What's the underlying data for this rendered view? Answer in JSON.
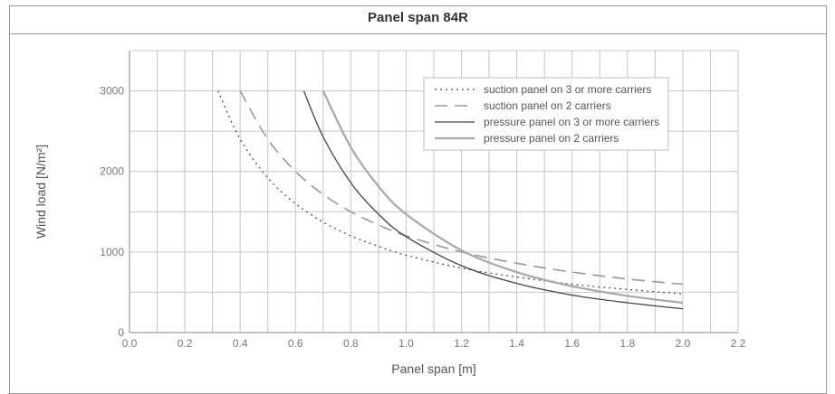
{
  "chart_data": {
    "type": "line",
    "title": "Panel span 84R",
    "xlabel": "Panel span [m]",
    "ylabel": "Wind load [N/m²]",
    "xlim": [
      0.0,
      2.2
    ],
    "ylim": [
      0,
      3500
    ],
    "x_ticks": [
      "0.0",
      "0.2",
      "0.4",
      "0.6",
      "0.8",
      "1.0",
      "1.2",
      "1.4",
      "1.6",
      "1.8",
      "2.0",
      "2.2"
    ],
    "y_ticks": [
      "0",
      "1000",
      "2000",
      "3000"
    ],
    "grid": true,
    "legend_position": "top-right",
    "series": [
      {
        "name": "suction panel on 3 or more carriers",
        "style": "dotted",
        "color": "#444444",
        "points": [
          [
            0.32,
            3000
          ],
          [
            0.4,
            2400
          ],
          [
            0.5,
            1920
          ],
          [
            0.6,
            1600
          ],
          [
            0.7,
            1370
          ],
          [
            0.8,
            1200
          ],
          [
            0.9,
            1070
          ],
          [
            1.0,
            960
          ],
          [
            1.2,
            800
          ],
          [
            1.4,
            690
          ],
          [
            1.6,
            600
          ],
          [
            1.8,
            535
          ],
          [
            2.0,
            480
          ]
        ]
      },
      {
        "name": "suction panel on 2 carriers",
        "style": "dashed",
        "color": "#999999",
        "points": [
          [
            0.4,
            3000
          ],
          [
            0.5,
            2400
          ],
          [
            0.6,
            2000
          ],
          [
            0.7,
            1715
          ],
          [
            0.8,
            1500
          ],
          [
            0.9,
            1335
          ],
          [
            1.0,
            1200
          ],
          [
            1.2,
            1000
          ],
          [
            1.4,
            860
          ],
          [
            1.6,
            750
          ],
          [
            1.8,
            665
          ],
          [
            2.0,
            600
          ]
        ]
      },
      {
        "name": "pressure panel on 3 or more carriers",
        "style": "solid",
        "color": "#444444",
        "points": [
          [
            0.63,
            3000
          ],
          [
            0.7,
            2430
          ],
          [
            0.8,
            1860
          ],
          [
            0.9,
            1470
          ],
          [
            1.0,
            1190
          ],
          [
            1.2,
            830
          ],
          [
            1.4,
            610
          ],
          [
            1.6,
            465
          ],
          [
            1.8,
            370
          ],
          [
            2.0,
            295
          ]
        ]
      },
      {
        "name": "pressure panel on 2 carriers",
        "style": "solid-thick",
        "color": "#a8a8a8",
        "points": [
          [
            0.7,
            3000
          ],
          [
            0.8,
            2300
          ],
          [
            0.9,
            1815
          ],
          [
            1.0,
            1470
          ],
          [
            1.2,
            1020
          ],
          [
            1.4,
            750
          ],
          [
            1.6,
            575
          ],
          [
            1.8,
            455
          ],
          [
            2.0,
            370
          ]
        ]
      }
    ]
  }
}
